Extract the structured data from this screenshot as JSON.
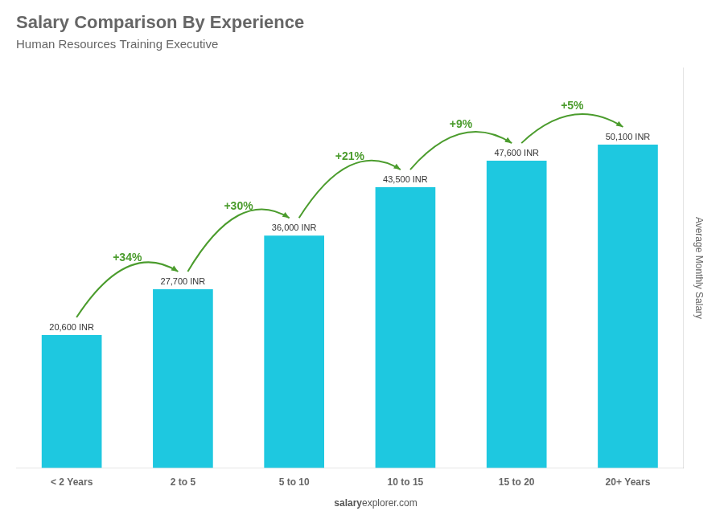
{
  "chart_data": {
    "type": "bar",
    "title": "Salary Comparison By Experience",
    "subtitle": "Human Resources Training Executive",
    "categories": [
      "< 2 Years",
      "2 to 5",
      "5 to 10",
      "10 to 15",
      "15 to 20",
      "20+ Years"
    ],
    "values": [
      20600,
      27700,
      36000,
      43500,
      47600,
      50100
    ],
    "value_labels": [
      "20,600 INR",
      "27,700 INR",
      "36,000 INR",
      "43,500 INR",
      "47,600 INR",
      "50,100 INR"
    ],
    "data_labels": true,
    "annotations": [
      "+34%",
      "+30%",
      "+21%",
      "+9%",
      "+5%"
    ],
    "watermark": [
      "salary",
      "explorer.com"
    ],
    "ylabel": "Average Monthly Salary",
    "color": "#1ec8e0",
    "ylim": [
      0,
      62000
    ],
    "tick_labels": "x",
    "grid": false
  }
}
